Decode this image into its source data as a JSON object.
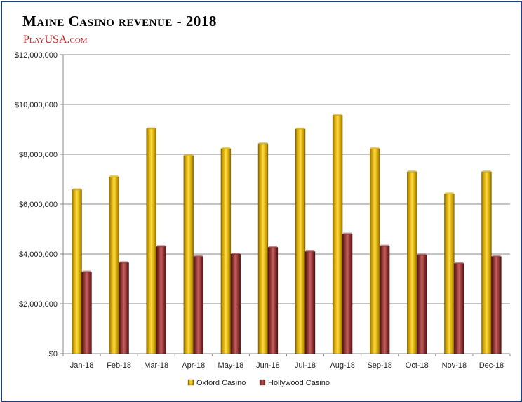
{
  "chart_data": {
    "type": "bar",
    "title": "Maine Casino revenue - 2018",
    "source": "PlayUSA.com",
    "categories": [
      "Jan-18",
      "Feb-18",
      "Mar-18",
      "Apr-18",
      "May-18",
      "Jun-18",
      "Jul-18",
      "Aug-18",
      "Sep-18",
      "Oct-18",
      "Nov-18",
      "Dec-18"
    ],
    "series": [
      {
        "name": "Oxford Casino",
        "color": "#d6a800",
        "values": [
          6580000,
          7100000,
          9030000,
          7950000,
          8230000,
          8430000,
          9020000,
          9570000,
          8230000,
          7300000,
          6420000,
          7300000
        ]
      },
      {
        "name": "Hollywood Casino",
        "color": "#8e3030",
        "values": [
          3280000,
          3650000,
          4300000,
          3900000,
          4000000,
          4270000,
          4100000,
          4800000,
          4320000,
          3960000,
          3620000,
          3900000
        ]
      }
    ],
    "ylim": [
      0,
      12000000
    ],
    "yticks": [
      "$0",
      "$2,000,000",
      "$4,000,000",
      "$6,000,000",
      "$8,000,000",
      "$10,000,000",
      "$12,000,000"
    ],
    "xlabel": "",
    "ylabel": "",
    "grid": true,
    "legend_position": "bottom"
  }
}
